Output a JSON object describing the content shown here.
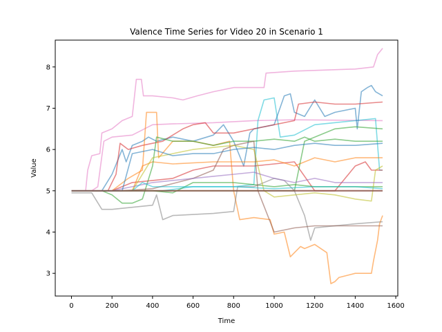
{
  "chart_data": {
    "type": "line",
    "title": "Valence Time Series for Video 20 in Scenario 1",
    "xlabel": "Time",
    "ylabel": "Value",
    "xlim": [
      -80,
      1610
    ],
    "ylim": [
      2.45,
      8.65
    ],
    "xticks": [
      0,
      200,
      400,
      600,
      800,
      1000,
      1200,
      1400,
      1600
    ],
    "yticks": [
      3,
      4,
      5,
      6,
      7,
      8
    ],
    "grid": false,
    "legend": "none",
    "series": [
      {
        "color": "#e377c2",
        "points": [
          [
            0,
            5.0
          ],
          [
            70,
            5.0
          ],
          [
            80,
            5.5
          ],
          [
            100,
            5.85
          ],
          [
            140,
            5.9
          ],
          [
            150,
            6.4
          ],
          [
            200,
            6.5
          ],
          [
            250,
            6.7
          ],
          [
            300,
            6.8
          ],
          [
            320,
            7.7
          ],
          [
            345,
            7.7
          ],
          [
            355,
            7.3
          ],
          [
            400,
            7.3
          ],
          [
            500,
            7.25
          ],
          [
            550,
            7.2
          ],
          [
            620,
            7.3
          ],
          [
            700,
            7.4
          ],
          [
            800,
            7.5
          ],
          [
            950,
            7.5
          ],
          [
            960,
            7.85
          ],
          [
            1100,
            7.9
          ],
          [
            1400,
            7.95
          ],
          [
            1490,
            8.0
          ],
          [
            1510,
            8.3
          ],
          [
            1535,
            8.45
          ]
        ]
      },
      {
        "color": "#e377c2",
        "points": [
          [
            0,
            5.0
          ],
          [
            100,
            5.0
          ],
          [
            130,
            5.1
          ],
          [
            160,
            6.2
          ],
          [
            200,
            6.3
          ],
          [
            300,
            6.35
          ],
          [
            400,
            6.6
          ],
          [
            500,
            6.62
          ],
          [
            700,
            6.65
          ],
          [
            900,
            6.7
          ],
          [
            1100,
            6.72
          ],
          [
            1535,
            6.7
          ]
        ]
      },
      {
        "color": "#17becf",
        "points": [
          [
            0,
            5.0
          ],
          [
            450,
            5.0
          ],
          [
            600,
            5.1
          ],
          [
            800,
            5.1
          ],
          [
            900,
            5.15
          ],
          [
            920,
            6.7
          ],
          [
            950,
            7.2
          ],
          [
            1000,
            7.25
          ],
          [
            1030,
            6.3
          ],
          [
            1100,
            6.35
          ],
          [
            1200,
            6.6
          ],
          [
            1400,
            6.7
          ],
          [
            1500,
            6.75
          ],
          [
            1520,
            5.5
          ],
          [
            1535,
            5.5
          ]
        ]
      },
      {
        "color": "#1f77b4",
        "points": [
          [
            0,
            5.0
          ],
          [
            150,
            5.0
          ],
          [
            200,
            5.4
          ],
          [
            250,
            6.0
          ],
          [
            270,
            5.7
          ],
          [
            300,
            6.1
          ],
          [
            350,
            6.2
          ],
          [
            380,
            6.3
          ],
          [
            420,
            6.2
          ],
          [
            500,
            6.3
          ],
          [
            600,
            6.2
          ],
          [
            700,
            6.35
          ],
          [
            750,
            6.6
          ],
          [
            800,
            6.2
          ],
          [
            850,
            5.6
          ],
          [
            880,
            6.4
          ],
          [
            900,
            6.5
          ],
          [
            950,
            6.55
          ],
          [
            1000,
            6.6
          ],
          [
            1050,
            7.3
          ],
          [
            1080,
            7.35
          ],
          [
            1100,
            6.9
          ],
          [
            1150,
            6.8
          ],
          [
            1200,
            7.2
          ],
          [
            1250,
            6.8
          ],
          [
            1300,
            6.9
          ],
          [
            1400,
            7.0
          ],
          [
            1410,
            6.5
          ],
          [
            1430,
            7.4
          ],
          [
            1460,
            7.5
          ],
          [
            1480,
            7.55
          ],
          [
            1500,
            7.4
          ],
          [
            1535,
            7.3
          ]
        ]
      },
      {
        "color": "#d62728",
        "points": [
          [
            0,
            5.0
          ],
          [
            180,
            5.0
          ],
          [
            220,
            5.4
          ],
          [
            240,
            6.15
          ],
          [
            280,
            6.0
          ],
          [
            350,
            6.1
          ],
          [
            450,
            6.2
          ],
          [
            550,
            6.5
          ],
          [
            600,
            6.6
          ],
          [
            660,
            6.65
          ],
          [
            700,
            6.4
          ],
          [
            800,
            6.4
          ],
          [
            900,
            6.5
          ],
          [
            1000,
            6.6
          ],
          [
            1100,
            6.7
          ],
          [
            1120,
            7.1
          ],
          [
            1200,
            7.15
          ],
          [
            1300,
            7.1
          ],
          [
            1400,
            7.1
          ],
          [
            1535,
            7.15
          ]
        ]
      },
      {
        "color": "#d62728",
        "points": [
          [
            0,
            5.0
          ],
          [
            200,
            5.0
          ],
          [
            300,
            5.2
          ],
          [
            400,
            5.25
          ],
          [
            500,
            5.3
          ],
          [
            600,
            5.5
          ],
          [
            700,
            5.6
          ],
          [
            800,
            5.6
          ],
          [
            900,
            5.6
          ],
          [
            1000,
            5.65
          ],
          [
            1100,
            5.7
          ],
          [
            1200,
            5.0
          ],
          [
            1300,
            5.0
          ],
          [
            1400,
            5.6
          ],
          [
            1450,
            5.7
          ],
          [
            1480,
            5.5
          ],
          [
            1535,
            5.5
          ]
        ]
      },
      {
        "color": "#ff7f0e",
        "points": [
          [
            0,
            5.0
          ],
          [
            200,
            5.0
          ],
          [
            280,
            5.3
          ],
          [
            350,
            5.5
          ],
          [
            370,
            6.9
          ],
          [
            420,
            6.9
          ],
          [
            430,
            5.8
          ],
          [
            500,
            6.2
          ],
          [
            600,
            6.2
          ],
          [
            700,
            6.1
          ],
          [
            780,
            6.2
          ],
          [
            800,
            5.0
          ],
          [
            830,
            4.3
          ],
          [
            900,
            4.35
          ],
          [
            980,
            4.3
          ],
          [
            1000,
            3.95
          ],
          [
            1050,
            4.0
          ],
          [
            1080,
            3.4
          ],
          [
            1100,
            3.5
          ],
          [
            1130,
            3.65
          ],
          [
            1150,
            3.6
          ],
          [
            1200,
            3.7
          ],
          [
            1260,
            3.5
          ],
          [
            1280,
            2.75
          ],
          [
            1300,
            2.8
          ],
          [
            1320,
            2.9
          ],
          [
            1400,
            3.0
          ],
          [
            1480,
            3.0
          ],
          [
            1490,
            3.3
          ],
          [
            1510,
            3.8
          ],
          [
            1520,
            4.2
          ],
          [
            1535,
            4.4
          ]
        ]
      },
      {
        "color": "#ff7f0e",
        "points": [
          [
            0,
            5.0
          ],
          [
            300,
            5.0
          ],
          [
            350,
            5.6
          ],
          [
            400,
            5.7
          ],
          [
            500,
            5.65
          ],
          [
            700,
            5.7
          ],
          [
            900,
            5.7
          ],
          [
            1000,
            5.75
          ],
          [
            1100,
            5.6
          ],
          [
            1200,
            5.8
          ],
          [
            1300,
            5.7
          ],
          [
            1400,
            5.8
          ],
          [
            1535,
            5.8
          ]
        ]
      },
      {
        "color": "#2ca02c",
        "points": [
          [
            0,
            5.0
          ],
          [
            150,
            5.0
          ],
          [
            200,
            4.9
          ],
          [
            250,
            4.7
          ],
          [
            300,
            4.7
          ],
          [
            350,
            4.8
          ],
          [
            400,
            5.6
          ],
          [
            420,
            6.3
          ],
          [
            500,
            6.2
          ],
          [
            600,
            6.2
          ],
          [
            700,
            6.1
          ],
          [
            800,
            6.2
          ],
          [
            900,
            6.2
          ],
          [
            1000,
            6.25
          ],
          [
            1100,
            6.2
          ],
          [
            1150,
            6.3
          ],
          [
            1200,
            6.2
          ],
          [
            1300,
            6.25
          ],
          [
            1400,
            6.2
          ],
          [
            1535,
            6.2
          ]
        ]
      },
      {
        "color": "#2ca02c",
        "points": [
          [
            0,
            5.0
          ],
          [
            400,
            5.0
          ],
          [
            500,
            4.95
          ],
          [
            600,
            5.2
          ],
          [
            800,
            5.2
          ],
          [
            900,
            5.15
          ],
          [
            1000,
            5.1
          ],
          [
            1100,
            5.15
          ],
          [
            1200,
            5.1
          ],
          [
            1300,
            5.1
          ],
          [
            1535,
            5.1
          ]
        ]
      },
      {
        "color": "#2ca02c",
        "points": [
          [
            0,
            5.0
          ],
          [
            1100,
            5.0
          ],
          [
            1150,
            6.2
          ],
          [
            1200,
            6.3
          ],
          [
            1300,
            6.5
          ],
          [
            1400,
            6.55
          ],
          [
            1535,
            6.5
          ]
        ]
      },
      {
        "color": "#7f7f7f",
        "points": [
          [
            0,
            4.95
          ],
          [
            100,
            4.95
          ],
          [
            150,
            4.55
          ],
          [
            200,
            4.55
          ],
          [
            300,
            4.6
          ],
          [
            400,
            4.65
          ],
          [
            420,
            4.9
          ],
          [
            450,
            4.3
          ],
          [
            500,
            4.4
          ],
          [
            700,
            4.45
          ],
          [
            800,
            4.5
          ],
          [
            820,
            5.1
          ],
          [
            900,
            5.1
          ],
          [
            1000,
            5.3
          ],
          [
            1050,
            5.25
          ],
          [
            1100,
            5.0
          ],
          [
            1150,
            4.4
          ],
          [
            1180,
            3.8
          ],
          [
            1200,
            4.1
          ],
          [
            1300,
            4.15
          ],
          [
            1400,
            4.2
          ],
          [
            1535,
            4.25
          ]
        ]
      },
      {
        "color": "#8c564b",
        "points": [
          [
            0,
            5.0
          ],
          [
            250,
            5.0
          ],
          [
            400,
            5.05
          ],
          [
            600,
            5.3
          ],
          [
            700,
            5.5
          ],
          [
            750,
            6.0
          ],
          [
            800,
            6.1
          ],
          [
            900,
            6.2
          ],
          [
            920,
            5.0
          ],
          [
            1000,
            4.0
          ],
          [
            1100,
            4.1
          ],
          [
            1200,
            4.15
          ],
          [
            1535,
            4.15
          ]
        ]
      },
      {
        "color": "#bcbd22",
        "points": [
          [
            0,
            5.0
          ],
          [
            300,
            5.0
          ],
          [
            400,
            5.8
          ],
          [
            500,
            5.9
          ],
          [
            600,
            6.0
          ],
          [
            800,
            6.1
          ],
          [
            900,
            6.0
          ],
          [
            950,
            5.0
          ],
          [
            1000,
            4.85
          ],
          [
            1100,
            4.9
          ],
          [
            1200,
            4.95
          ],
          [
            1300,
            4.9
          ],
          [
            1400,
            4.8
          ],
          [
            1480,
            4.75
          ],
          [
            1500,
            5.5
          ],
          [
            1535,
            5.6
          ]
        ]
      },
      {
        "color": "#9467bd",
        "points": [
          [
            0,
            5.0
          ],
          [
            200,
            5.0
          ],
          [
            300,
            5.1
          ],
          [
            400,
            5.2
          ],
          [
            500,
            5.25
          ],
          [
            600,
            5.3
          ],
          [
            700,
            5.35
          ],
          [
            800,
            5.4
          ],
          [
            900,
            5.45
          ],
          [
            1000,
            5.3
          ],
          [
            1100,
            5.2
          ],
          [
            1200,
            5.3
          ],
          [
            1300,
            5.2
          ],
          [
            1400,
            5.2
          ],
          [
            1535,
            5.2
          ]
        ]
      },
      {
        "color": "#1f77b4",
        "points": [
          [
            0,
            5.0
          ],
          [
            250,
            5.0
          ],
          [
            300,
            5.9
          ],
          [
            400,
            6.0
          ],
          [
            500,
            5.85
          ],
          [
            600,
            5.9
          ],
          [
            700,
            5.9
          ],
          [
            800,
            6.0
          ],
          [
            900,
            6.05
          ],
          [
            1000,
            6.0
          ],
          [
            1100,
            6.1
          ],
          [
            1200,
            6.15
          ],
          [
            1300,
            6.1
          ],
          [
            1400,
            6.1
          ],
          [
            1535,
            6.15
          ]
        ]
      },
      {
        "color": "#17becf",
        "points": [
          [
            0,
            5.0
          ],
          [
            300,
            5.0
          ],
          [
            350,
            5.2
          ],
          [
            400,
            5.1
          ],
          [
            600,
            5.1
          ],
          [
            800,
            5.1
          ],
          [
            1000,
            5.05
          ],
          [
            1200,
            5.1
          ],
          [
            1400,
            5.1
          ],
          [
            1535,
            5.05
          ]
        ]
      },
      {
        "color": "#8c564b",
        "points": [
          [
            0,
            5.0
          ],
          [
            1535,
            5.0
          ]
        ]
      }
    ]
  }
}
